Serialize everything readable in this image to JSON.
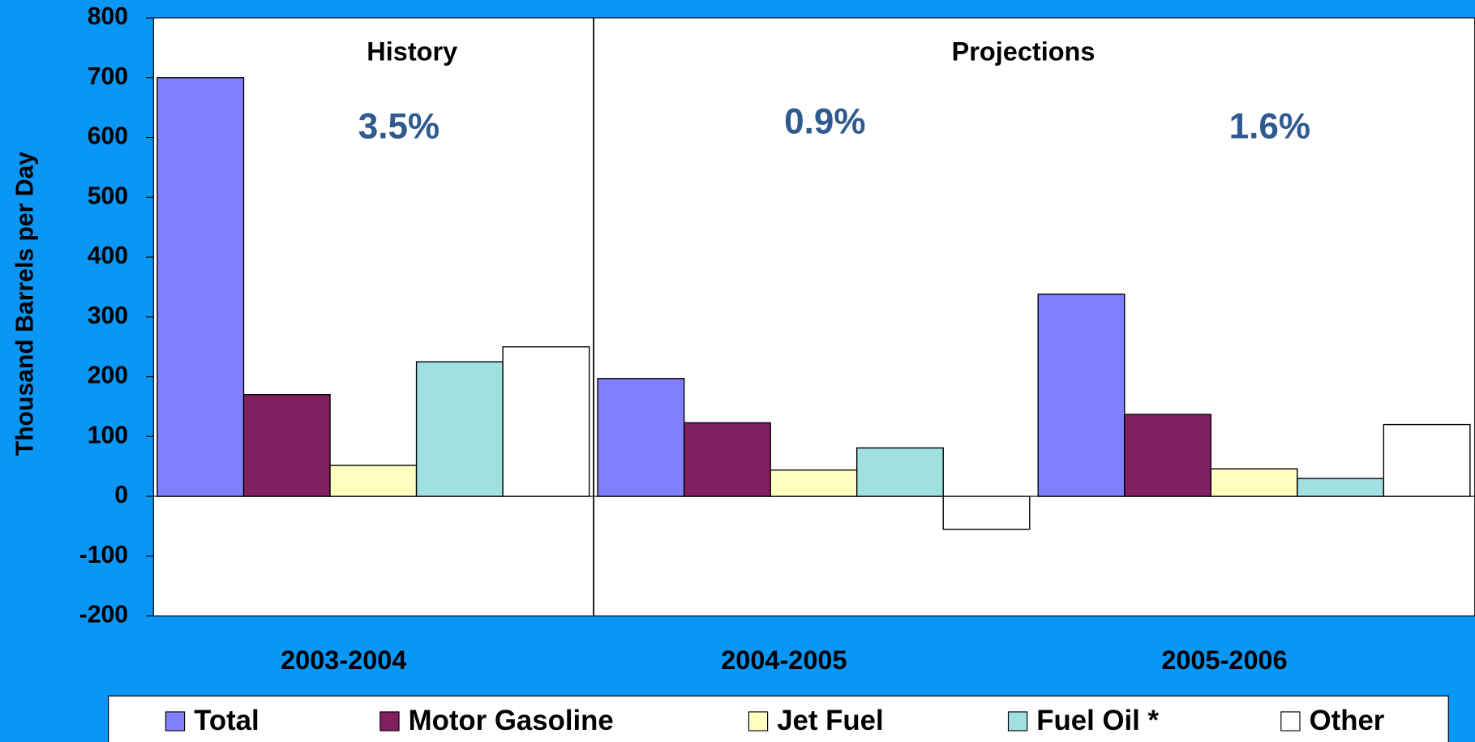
{
  "chart_data": {
    "type": "bar",
    "y_label": "Thousand Barrels per Day",
    "annotations": [
      "History",
      "Projections",
      "3.5%",
      "0.9%",
      "1.6%"
    ],
    "categories": [
      "2003-2004",
      "2004-2005",
      "2005-2006"
    ],
    "series": [
      {
        "name": "Total",
        "color": "#8080ff",
        "values": [
          700,
          197,
          338
        ]
      },
      {
        "name": "Motor Gasoline",
        "color": "#802060",
        "values": [
          170,
          123,
          137
        ]
      },
      {
        "name": "Jet Fuel",
        "color": "#ffffc0",
        "values": [
          52,
          44,
          46
        ]
      },
      {
        "name": "Fuel Oil *",
        "color": "#a0e0e0",
        "values": [
          225,
          81,
          30
        ]
      },
      {
        "name": "Other",
        "color": "#ffffff",
        "values": [
          250,
          -55,
          120
        ]
      }
    ],
    "ylim": [
      -200,
      800
    ],
    "yticks": [
      -200,
      -100,
      0,
      100,
      200,
      300,
      400,
      500,
      600,
      700,
      800
    ],
    "legend": "bottom"
  }
}
